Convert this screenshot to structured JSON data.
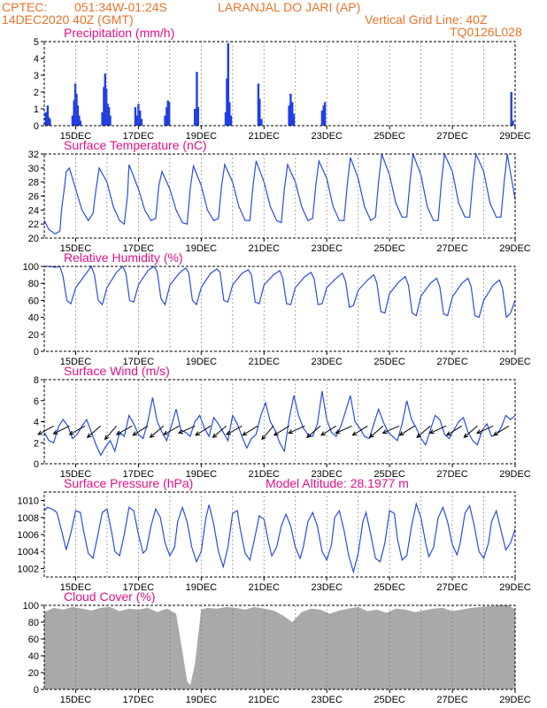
{
  "header": {
    "source": "CPTEC:",
    "coords": "051:34W-01:24S",
    "location": "LARANJAL DO JARI (AP)",
    "datetime": "14DEC2020 40Z (GMT)",
    "grid_note": "Vertical Grid Line: 40Z",
    "code": "TQ0126L028"
  },
  "model_altitude": "Model Altitude: 28.1977 m",
  "colors": {
    "header": "#e8742a",
    "title": "#e0118c",
    "line": "#2a4de0",
    "bar": "#1f3fe6",
    "cloud": "#a9a9a9",
    "text": "#000000"
  },
  "x_tick_labels": [
    "15DEC",
    "17DEC",
    "19DEC",
    "21DEC",
    "23DEC",
    "25DEC",
    "27DEC",
    "29DEC"
  ],
  "chart_data": [
    {
      "type": "bar",
      "title": "Precipitation (mm/h)",
      "ylim": [
        0,
        5
      ],
      "yticks": [
        0,
        1,
        2,
        3,
        4,
        5
      ],
      "x_unit": "days since 14DEC2020 00Z",
      "points": [
        [
          0.05,
          0.8
        ],
        [
          0.08,
          0.3
        ],
        [
          0.11,
          1.2
        ],
        [
          0.15,
          0.5
        ],
        [
          0.18,
          0.4
        ],
        [
          0.9,
          0.6
        ],
        [
          0.95,
          1.5
        ],
        [
          0.99,
          2.5
        ],
        [
          1.03,
          1.9
        ],
        [
          1.07,
          1.2
        ],
        [
          1.11,
          0.6
        ],
        [
          1.15,
          0.3
        ],
        [
          1.85,
          0.8
        ],
        [
          1.9,
          2.3
        ],
        [
          1.94,
          3.1
        ],
        [
          1.98,
          2.2
        ],
        [
          2.02,
          1.3
        ],
        [
          2.06,
          1.1
        ],
        [
          2.1,
          0.6
        ],
        [
          2.9,
          1.1
        ],
        [
          2.95,
          0.6
        ],
        [
          3.0,
          1.3
        ],
        [
          3.05,
          0.9
        ],
        [
          3.1,
          0.4
        ],
        [
          3.85,
          0.6
        ],
        [
          3.9,
          1.1
        ],
        [
          3.94,
          1.5
        ],
        [
          3.98,
          1.4
        ],
        [
          4.8,
          1.0
        ],
        [
          4.86,
          3.2
        ],
        [
          4.9,
          1.1
        ],
        [
          5.78,
          0.8
        ],
        [
          5.82,
          2.8
        ],
        [
          5.86,
          4.9
        ],
        [
          5.9,
          1.4
        ],
        [
          5.95,
          0.6
        ],
        [
          6.82,
          2.5
        ],
        [
          6.86,
          1.6
        ],
        [
          6.92,
          0.4
        ],
        [
          7.8,
          1.2
        ],
        [
          7.85,
          1.9
        ],
        [
          7.9,
          1.4
        ],
        [
          7.95,
          0.7
        ],
        [
          8.85,
          0.9
        ],
        [
          8.9,
          1.2
        ],
        [
          8.94,
          1.4
        ],
        [
          14.88,
          2.0
        ],
        [
          14.93,
          0.3
        ]
      ]
    },
    {
      "type": "line",
      "title": "Surface Temperature (nC)",
      "ylim": [
        20,
        32
      ],
      "yticks": [
        20,
        22,
        24,
        26,
        28,
        30,
        32
      ],
      "x_unit": "days since 14DEC2020 00Z",
      "x": [
        0.0,
        0.15,
        0.35,
        0.5,
        0.55,
        0.65,
        0.7,
        0.8,
        1.0,
        1.2,
        1.4,
        1.55,
        1.65,
        1.75,
        2.0,
        2.2,
        2.4,
        2.55,
        2.65,
        2.7,
        3.0,
        3.2,
        3.4,
        3.55,
        3.65,
        3.75,
        4.0,
        4.2,
        4.4,
        4.55,
        4.65,
        4.75,
        5.0,
        5.2,
        5.4,
        5.55,
        5.65,
        5.75,
        6.0,
        6.2,
        6.4,
        6.55,
        6.65,
        6.75,
        7.0,
        7.2,
        7.4,
        7.55,
        7.65,
        7.75,
        8.0,
        8.2,
        8.4,
        8.55,
        8.65,
        8.75,
        9.0,
        9.2,
        9.4,
        9.55,
        9.65,
        9.75,
        10.0,
        10.2,
        10.4,
        10.55,
        10.65,
        10.75,
        11.0,
        11.2,
        11.4,
        11.55,
        11.65,
        11.75,
        12.0,
        12.2,
        12.4,
        12.55,
        12.65,
        12.75,
        13.0,
        13.2,
        13.4,
        13.55,
        13.65,
        13.75,
        14.0,
        14.2,
        14.4,
        14.55,
        14.65,
        14.75,
        15.0
      ],
      "y": [
        22.5,
        21.2,
        20.6,
        21.0,
        24.0,
        27.5,
        29.5,
        30.0,
        27.0,
        24.0,
        22.5,
        23.5,
        27.0,
        30.0,
        28.0,
        24.5,
        22.5,
        22.0,
        26.0,
        30.5,
        27.0,
        24.0,
        22.5,
        22.8,
        27.5,
        29.5,
        27.0,
        24.0,
        22.2,
        22.0,
        27.0,
        30.3,
        27.5,
        24.0,
        22.5,
        22.8,
        27.5,
        30.5,
        28.0,
        24.5,
        22.5,
        22.5,
        27.5,
        31.0,
        28.0,
        24.5,
        22.5,
        22.2,
        27.0,
        30.5,
        28.0,
        24.5,
        22.5,
        22.8,
        27.5,
        31.0,
        28.5,
        24.5,
        22.5,
        22.5,
        27.5,
        31.5,
        28.5,
        24.5,
        22.5,
        23.0,
        28.0,
        32.0,
        29.0,
        25.0,
        23.0,
        23.0,
        28.0,
        32.0,
        29.0,
        24.5,
        22.5,
        22.5,
        28.0,
        32.0,
        29.5,
        25.0,
        23.0,
        23.0,
        28.0,
        32.0,
        29.5,
        25.0,
        23.0,
        23.0,
        28.0,
        32.0,
        25.5
      ]
    },
    {
      "type": "line",
      "title": "Relative Humidity (%)",
      "ylim": [
        0,
        100
      ],
      "yticks": [
        0,
        20,
        40,
        60,
        80,
        100
      ],
      "x_unit": "days since 14DEC2020 00Z",
      "x": [
        0.0,
        0.15,
        0.35,
        0.5,
        0.6,
        0.72,
        0.85,
        1.0,
        1.3,
        1.5,
        1.6,
        1.72,
        1.85,
        2.0,
        2.3,
        2.5,
        2.6,
        2.72,
        2.85,
        3.0,
        3.3,
        3.5,
        3.6,
        3.72,
        3.85,
        4.0,
        4.3,
        4.5,
        4.6,
        4.72,
        4.85,
        5.0,
        5.3,
        5.5,
        5.6,
        5.72,
        5.85,
        6.0,
        6.3,
        6.5,
        6.6,
        6.72,
        6.85,
        7.0,
        7.3,
        7.5,
        7.6,
        7.72,
        7.85,
        8.0,
        8.3,
        8.5,
        8.6,
        8.72,
        8.85,
        9.0,
        9.3,
        9.5,
        9.6,
        9.72,
        9.85,
        10.0,
        10.3,
        10.5,
        10.6,
        10.72,
        10.85,
        11.0,
        11.3,
        11.5,
        11.6,
        11.72,
        11.85,
        12.0,
        12.3,
        12.5,
        12.6,
        12.72,
        12.85,
        13.0,
        13.3,
        13.5,
        13.6,
        13.72,
        13.85,
        14.0,
        14.3,
        14.5,
        14.6,
        14.72,
        14.85,
        15.0
      ],
      "y": [
        100,
        100,
        99,
        100,
        88,
        60,
        56,
        75,
        90,
        100,
        90,
        60,
        55,
        75,
        93,
        100,
        92,
        60,
        58,
        78,
        95,
        100,
        93,
        62,
        55,
        78,
        92,
        98,
        93,
        60,
        55,
        75,
        92,
        97,
        93,
        60,
        58,
        78,
        92,
        96,
        90,
        58,
        56,
        78,
        90,
        95,
        86,
        56,
        55,
        75,
        88,
        93,
        85,
        55,
        56,
        75,
        86,
        92,
        82,
        52,
        54,
        72,
        84,
        90,
        80,
        47,
        45,
        68,
        82,
        88,
        78,
        45,
        42,
        65,
        80,
        86,
        76,
        44,
        42,
        64,
        80,
        86,
        76,
        42,
        40,
        60,
        78,
        84,
        74,
        40,
        45,
        60
      ]
    },
    {
      "type": "line",
      "title": "Surface Wind (m/s)",
      "ylim": [
        0,
        8
      ],
      "yticks": [
        0,
        2,
        4,
        6,
        8
      ],
      "x_unit": "days since 14DEC2020 00Z",
      "x": [
        0.0,
        0.15,
        0.3,
        0.45,
        0.6,
        0.75,
        0.9,
        1.05,
        1.2,
        1.35,
        1.5,
        1.65,
        1.8,
        1.95,
        2.1,
        2.25,
        2.4,
        2.55,
        2.7,
        2.85,
        3.0,
        3.15,
        3.3,
        3.45,
        3.6,
        3.75,
        3.9,
        4.05,
        4.2,
        4.35,
        4.5,
        4.65,
        4.8,
        4.95,
        5.1,
        5.25,
        5.4,
        5.55,
        5.7,
        5.85,
        6.0,
        6.15,
        6.3,
        6.45,
        6.6,
        6.75,
        6.9,
        7.05,
        7.2,
        7.35,
        7.5,
        7.65,
        7.8,
        7.95,
        8.1,
        8.25,
        8.4,
        8.55,
        8.7,
        8.85,
        9.0,
        9.15,
        9.3,
        9.45,
        9.6,
        9.75,
        9.9,
        10.05,
        10.2,
        10.35,
        10.5,
        10.65,
        10.8,
        10.95,
        11.1,
        11.25,
        11.4,
        11.55,
        11.7,
        11.85,
        12.0,
        12.15,
        12.3,
        12.45,
        12.6,
        12.75,
        12.9,
        13.05,
        13.2,
        13.35,
        13.5,
        13.65,
        13.8,
        13.95,
        14.1,
        14.25,
        14.4,
        14.55,
        14.7,
        14.85,
        15.0
      ],
      "y": [
        3.0,
        2.2,
        2.0,
        3.5,
        4.2,
        3.6,
        2.4,
        2.8,
        3.6,
        4.2,
        3.0,
        1.8,
        0.8,
        1.6,
        2.2,
        1.2,
        3.0,
        2.6,
        4.6,
        3.8,
        2.8,
        2.4,
        4.0,
        6.3,
        4.0,
        3.0,
        2.2,
        3.6,
        5.2,
        3.2,
        3.0,
        2.6,
        4.0,
        4.6,
        3.4,
        2.6,
        4.4,
        3.8,
        3.0,
        2.2,
        4.6,
        3.8,
        2.6,
        1.5,
        2.4,
        2.8,
        4.6,
        5.8,
        4.0,
        3.2,
        2.0,
        1.2,
        4.2,
        6.5,
        4.6,
        3.4,
        2.8,
        2.6,
        3.8,
        6.9,
        4.2,
        3.0,
        2.6,
        3.6,
        5.0,
        6.5,
        4.0,
        3.4,
        2.6,
        2.4,
        3.8,
        5.2,
        4.0,
        3.0,
        2.6,
        2.2,
        3.8,
        6.0,
        4.2,
        3.4,
        2.4,
        1.8,
        3.2,
        4.6,
        4.2,
        2.8,
        2.4,
        3.2,
        4.0,
        4.4,
        3.0,
        2.2,
        1.8,
        3.2,
        3.8,
        2.6,
        2.8,
        3.4,
        4.6,
        4.2,
        4.6
      ]
    },
    {
      "type": "line",
      "title": "Surface Pressure (hPa)",
      "ylim": [
        1001,
        1011
      ],
      "yticks": [
        1002,
        1004,
        1006,
        1008,
        1010
      ],
      "x_unit": "days since 14DEC2020 00Z",
      "x": [
        0.0,
        0.1,
        0.25,
        0.4,
        0.55,
        0.7,
        0.85,
        1.0,
        1.15,
        1.25,
        1.4,
        1.55,
        1.7,
        1.85,
        2.0,
        2.15,
        2.25,
        2.4,
        2.55,
        2.7,
        2.85,
        3.0,
        3.15,
        3.25,
        3.4,
        3.55,
        3.7,
        3.85,
        4.0,
        4.15,
        4.25,
        4.4,
        4.55,
        4.7,
        4.85,
        5.0,
        5.15,
        5.25,
        5.4,
        5.55,
        5.7,
        5.85,
        6.0,
        6.15,
        6.25,
        6.4,
        6.55,
        6.7,
        6.85,
        7.0,
        7.15,
        7.25,
        7.4,
        7.55,
        7.7,
        7.85,
        8.0,
        8.15,
        8.25,
        8.4,
        8.55,
        8.7,
        8.85,
        9.0,
        9.15,
        9.25,
        9.4,
        9.55,
        9.7,
        9.85,
        10.0,
        10.15,
        10.25,
        10.4,
        10.55,
        10.7,
        10.85,
        11.0,
        11.15,
        11.25,
        11.4,
        11.55,
        11.7,
        11.85,
        12.0,
        12.15,
        12.25,
        12.4,
        12.55,
        12.7,
        12.85,
        13.0,
        13.15,
        13.25,
        13.4,
        13.55,
        13.7,
        13.85,
        14.0,
        14.15,
        14.25,
        14.4,
        14.55,
        14.7,
        14.85,
        15.0
      ],
      "y": [
        1008.8,
        1009.2,
        1009.0,
        1008.6,
        1006.5,
        1004.2,
        1006.2,
        1008.8,
        1008.6,
        1006.5,
        1003.8,
        1003.2,
        1005.8,
        1008.6,
        1009.0,
        1006.2,
        1004.0,
        1003.5,
        1006.0,
        1009.2,
        1008.8,
        1006.0,
        1003.8,
        1004.2,
        1007.0,
        1009.0,
        1008.0,
        1005.0,
        1003.5,
        1004.5,
        1007.5,
        1009.2,
        1007.5,
        1004.5,
        1002.8,
        1004.0,
        1008.0,
        1009.5,
        1007.2,
        1004.0,
        1002.2,
        1004.5,
        1008.5,
        1008.8,
        1006.5,
        1003.8,
        1003.0,
        1005.5,
        1008.2,
        1007.8,
        1005.0,
        1003.5,
        1004.5,
        1007.0,
        1008.4,
        1007.0,
        1004.5,
        1003.2,
        1004.5,
        1007.5,
        1008.6,
        1007.0,
        1004.0,
        1003.0,
        1004.8,
        1008.0,
        1008.8,
        1006.5,
        1003.5,
        1001.6,
        1003.8,
        1007.5,
        1008.6,
        1006.0,
        1003.2,
        1002.8,
        1005.0,
        1008.8,
        1008.5,
        1005.5,
        1003.0,
        1003.5,
        1007.0,
        1009.6,
        1008.0,
        1005.0,
        1003.4,
        1004.5,
        1008.0,
        1009.2,
        1007.5,
        1004.8,
        1003.6,
        1005.0,
        1008.5,
        1009.4,
        1007.0,
        1004.0,
        1003.2,
        1005.0,
        1007.5,
        1008.8,
        1006.5,
        1004.2,
        1005.0,
        1006.6
      ]
    },
    {
      "type": "area",
      "title": "Cloud Cover (%)",
      "ylim": [
        0,
        100
      ],
      "yticks": [
        0,
        20,
        40,
        60,
        80,
        100
      ],
      "x_unit": "days since 14DEC2020 00Z",
      "x": [
        0.0,
        0.3,
        0.6,
        0.9,
        1.2,
        1.5,
        1.8,
        2.1,
        2.4,
        2.7,
        3.0,
        3.3,
        3.6,
        3.9,
        4.2,
        4.4,
        4.55,
        4.65,
        4.8,
        5.0,
        5.2,
        5.5,
        5.8,
        6.1,
        6.4,
        6.7,
        7.0,
        7.3,
        7.6,
        7.9,
        8.2,
        8.5,
        8.8,
        9.1,
        9.4,
        9.7,
        10.0,
        10.3,
        10.6,
        10.9,
        11.2,
        11.5,
        11.8,
        12.1,
        12.4,
        12.7,
        13.0,
        13.3,
        13.6,
        13.9,
        14.2,
        14.5,
        14.8,
        15.0
      ],
      "y": [
        92,
        97,
        95,
        98,
        96,
        94,
        97,
        98,
        93,
        96,
        95,
        97,
        92,
        96,
        90,
        45,
        10,
        5,
        30,
        95,
        97,
        96,
        98,
        97,
        95,
        98,
        96,
        94,
        88,
        80,
        92,
        96,
        95,
        90,
        94,
        96,
        98,
        93,
        95,
        91,
        96,
        95,
        92,
        94,
        96,
        97,
        93,
        95,
        97,
        98,
        99,
        100,
        100,
        95
      ]
    }
  ],
  "wind_vectors": {
    "x": [
      0.3,
      0.8,
      1.3,
      1.8,
      2.3,
      2.8,
      3.3,
      3.8,
      4.3,
      4.8,
      5.3,
      5.8,
      6.3,
      6.8,
      7.3,
      7.8,
      8.3,
      8.8,
      9.3,
      9.8,
      10.3,
      10.8,
      11.3,
      11.8,
      12.3,
      12.8,
      13.3,
      13.8,
      14.3,
      14.8
    ],
    "u": [
      -0.9,
      -0.8,
      -0.9,
      -0.7,
      -0.6,
      -0.9,
      -0.8,
      -0.7,
      -0.9,
      -0.9,
      -0.8,
      -0.7,
      -0.9,
      -0.8,
      -0.6,
      -0.8,
      -0.9,
      -0.7,
      -0.8,
      -0.9,
      -0.8,
      -0.7,
      -0.9,
      -0.8,
      -0.7,
      -0.9,
      -0.8,
      -0.7,
      -0.9,
      -0.8
    ],
    "v": [
      -0.5,
      -0.4,
      -0.5,
      -0.6,
      -0.7,
      -0.5,
      -0.5,
      -0.6,
      -0.5,
      -0.4,
      -0.5,
      -0.6,
      -0.5,
      -0.5,
      -0.7,
      -0.5,
      -0.4,
      -0.6,
      -0.5,
      -0.4,
      -0.5,
      -0.6,
      -0.4,
      -0.5,
      -0.6,
      -0.4,
      -0.5,
      -0.6,
      -0.4,
      -0.5
    ]
  }
}
